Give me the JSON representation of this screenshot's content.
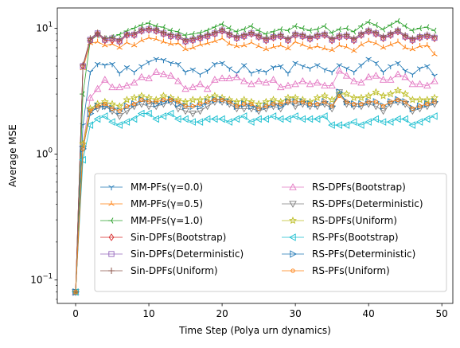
{
  "chart_data": {
    "type": "line",
    "xlabel": "Time Step (Polya urn dynamics)",
    "ylabel": "Average MSE",
    "xlim": [
      -2.5,
      51.5
    ],
    "ylim": [
      0.065,
      14.5
    ],
    "yscale": "log",
    "x_ticks": [
      0,
      10,
      20,
      30,
      40,
      50
    ],
    "y_ticks": [
      {
        "value": 0.1,
        "base": "10",
        "exp": "−1"
      },
      {
        "value": 1,
        "base": "10",
        "exp": "0"
      },
      {
        "value": 10,
        "base": "10",
        "exp": "1"
      }
    ],
    "grid": false,
    "legend": {
      "placement": "lower-right",
      "columns": 2
    },
    "series": [
      {
        "name": "MM-PFs(γ=0.0)",
        "color": "#1f77b4",
        "marker": "tri_down",
        "values": [
          0.08,
          1.7,
          4.5,
          5.2,
          5.1,
          5.2,
          4.4,
          4.9,
          4.5,
          5.0,
          5.4,
          5.7,
          5.6,
          5.3,
          5.2,
          4.5,
          4.7,
          4.3,
          4.6,
          5.2,
          5.3,
          4.8,
          4.4,
          5.1,
          4.4,
          4.6,
          4.5,
          4.9,
          5.0,
          4.4,
          5.3,
          5.0,
          4.8,
          5.1,
          4.7,
          4.5,
          5.1,
          4.8,
          4.5,
          5.1,
          5.7,
          5.3,
          4.5,
          5.0,
          5.3,
          4.6,
          4.3,
          4.8,
          5.0,
          4.2
        ]
      },
      {
        "name": "MM-PFs(γ=0.5)",
        "color": "#ff7f0e",
        "marker": "tri_up",
        "values": [
          0.08,
          4.8,
          7.6,
          7.8,
          7.3,
          7.5,
          7.0,
          7.7,
          7.3,
          8.0,
          8.4,
          8.2,
          7.8,
          7.5,
          7.6,
          6.8,
          7.0,
          7.4,
          7.6,
          7.9,
          8.3,
          7.5,
          7.2,
          7.3,
          7.7,
          7.2,
          6.8,
          7.1,
          7.3,
          6.9,
          7.8,
          7.4,
          7.0,
          7.2,
          6.9,
          6.7,
          7.3,
          7.1,
          6.6,
          7.4,
          7.9,
          7.6,
          7.0,
          7.4,
          7.8,
          7.0,
          6.8,
          7.2,
          7.3,
          6.2
        ]
      },
      {
        "name": "MM-PFs(γ=1.0)",
        "color": "#2ca02c",
        "marker": "tri_left",
        "values": [
          0.08,
          3.0,
          8.0,
          8.8,
          8.3,
          8.5,
          8.9,
          9.5,
          10.0,
          10.6,
          11.0,
          10.4,
          10.2,
          9.6,
          9.4,
          8.8,
          9.0,
          9.2,
          9.6,
          10.2,
          10.8,
          10.0,
          9.4,
          9.8,
          10.4,
          9.6,
          9.0,
          9.4,
          9.8,
          9.6,
          10.4,
          10.0,
          9.6,
          9.8,
          10.4,
          9.2,
          9.8,
          10.0,
          9.4,
          10.4,
          11.2,
          10.6,
          9.8,
          10.6,
          11.4,
          10.4,
          9.6,
          10.0,
          10.2,
          9.6
        ]
      },
      {
        "name": "Sin-DPFs(Bootstrap)",
        "color": "#d62728",
        "marker": "diamond",
        "values": [
          0.08,
          5.0,
          8.0,
          9.0,
          8.0,
          8.0,
          7.8,
          8.8,
          8.8,
          9.5,
          9.7,
          9.5,
          9.0,
          8.6,
          8.5,
          7.8,
          8.0,
          8.3,
          8.6,
          9.0,
          9.5,
          8.8,
          8.3,
          8.6,
          9.0,
          8.5,
          8.0,
          8.4,
          8.6,
          8.0,
          8.8,
          8.6,
          8.2,
          8.6,
          8.8,
          8.0,
          8.5,
          8.6,
          8.0,
          8.8,
          9.4,
          9.0,
          8.3,
          8.8,
          9.4,
          8.5,
          8.0,
          8.4,
          8.6,
          8.3
        ]
      },
      {
        "name": "Sin-DPFs(Deterministic)",
        "color": "#9467bd",
        "marker": "square",
        "values": [
          0.08,
          5.0,
          8.1,
          9.1,
          8.1,
          8.3,
          7.9,
          8.9,
          8.9,
          9.6,
          9.8,
          9.6,
          9.1,
          8.7,
          8.6,
          7.9,
          8.1,
          8.4,
          8.7,
          9.1,
          9.6,
          8.9,
          8.4,
          8.7,
          9.1,
          8.6,
          8.1,
          8.5,
          8.7,
          8.1,
          8.9,
          8.7,
          8.3,
          8.7,
          8.9,
          8.1,
          8.6,
          8.7,
          8.1,
          8.9,
          9.5,
          9.1,
          8.4,
          8.9,
          9.5,
          8.6,
          8.1,
          8.5,
          8.7,
          8.4
        ]
      },
      {
        "name": "Sin-DPFs(Uniform)",
        "color": "#8c564b",
        "marker": "plus",
        "values": [
          0.08,
          5.1,
          8.3,
          9.2,
          8.3,
          8.4,
          8.1,
          9.0,
          9.1,
          9.8,
          10.0,
          9.8,
          9.3,
          8.9,
          8.8,
          8.1,
          8.3,
          8.6,
          8.9,
          9.3,
          9.8,
          9.1,
          8.6,
          8.9,
          9.3,
          8.8,
          8.3,
          8.7,
          8.9,
          8.3,
          9.1,
          8.9,
          8.5,
          8.9,
          9.1,
          8.3,
          8.8,
          8.9,
          8.3,
          9.1,
          9.7,
          9.3,
          8.6,
          9.1,
          9.7,
          8.8,
          8.3,
          8.7,
          8.9,
          8.6
        ]
      },
      {
        "name": "RS-DPFs(Bootstrap)",
        "color": "#e377c2",
        "marker": "triangle_up",
        "values": [
          0.08,
          1.2,
          2.8,
          3.3,
          3.9,
          3.4,
          3.4,
          3.5,
          3.7,
          4.1,
          4.0,
          4.5,
          4.3,
          4.2,
          3.8,
          3.3,
          3.4,
          3.6,
          3.3,
          3.9,
          4.0,
          4.0,
          4.1,
          3.8,
          3.6,
          3.8,
          3.7,
          3.9,
          3.4,
          3.5,
          3.6,
          3.8,
          3.6,
          3.7,
          3.5,
          3.5,
          4.6,
          4.2,
          3.8,
          3.7,
          4.1,
          4.2,
          3.9,
          3.9,
          4.3,
          4.1,
          3.6,
          3.6,
          3.5,
          3.8
        ]
      },
      {
        "name": "RS-DPFs(Deterministic)",
        "color": "#7f7f7f",
        "marker": "triangle_down",
        "values": [
          0.08,
          1.1,
          2.2,
          2.3,
          2.4,
          2.2,
          2.0,
          2.2,
          2.4,
          2.5,
          2.4,
          2.4,
          2.5,
          2.6,
          2.3,
          2.2,
          2.1,
          2.2,
          2.4,
          2.6,
          2.6,
          2.5,
          2.3,
          2.3,
          2.3,
          2.2,
          2.3,
          2.4,
          2.3,
          2.6,
          2.4,
          2.5,
          2.4,
          2.4,
          2.5,
          2.3,
          3.1,
          2.5,
          2.4,
          2.4,
          2.5,
          2.4,
          2.2,
          2.5,
          2.6,
          2.5,
          2.2,
          2.3,
          2.4,
          2.5
        ]
      },
      {
        "name": "RS-DPFs(Uniform)",
        "color": "#bcbd22",
        "marker": "star",
        "values": [
          0.08,
          1.2,
          2.3,
          2.5,
          2.6,
          2.5,
          2.4,
          2.7,
          2.8,
          2.9,
          2.8,
          2.7,
          2.9,
          2.8,
          2.7,
          2.6,
          2.7,
          2.7,
          2.8,
          2.9,
          2.8,
          2.7,
          2.6,
          2.7,
          2.6,
          2.5,
          2.6,
          2.7,
          2.6,
          2.8,
          2.8,
          2.7,
          2.6,
          2.8,
          2.9,
          2.7,
          3.0,
          3.0,
          2.8,
          2.8,
          2.9,
          3.1,
          2.9,
          3.0,
          3.2,
          3.0,
          2.7,
          2.7,
          2.7,
          2.8
        ]
      },
      {
        "name": "RS-PFs(Bootstrap)",
        "color": "#17becf",
        "marker": "triangle_left",
        "values": [
          0.08,
          0.9,
          1.7,
          1.9,
          2.0,
          1.8,
          1.7,
          1.8,
          1.9,
          2.1,
          2.1,
          1.9,
          2.0,
          2.1,
          1.9,
          1.9,
          1.8,
          1.8,
          1.9,
          1.9,
          1.9,
          1.8,
          1.9,
          2.0,
          1.8,
          1.9,
          1.9,
          2.0,
          1.9,
          1.9,
          2.0,
          1.9,
          1.9,
          1.9,
          2.0,
          1.7,
          1.7,
          1.7,
          1.8,
          1.7,
          1.8,
          1.9,
          1.8,
          1.8,
          1.9,
          1.9,
          1.7,
          1.8,
          1.9,
          2.0
        ]
      },
      {
        "name": "RS-PFs(Deterministic)",
        "color": "#1f77b4",
        "marker": "triangle_right",
        "values": [
          0.08,
          1.1,
          2.1,
          2.4,
          2.4,
          2.3,
          2.2,
          2.4,
          2.5,
          2.7,
          2.6,
          2.5,
          2.6,
          2.7,
          2.5,
          2.4,
          2.4,
          2.4,
          2.6,
          2.7,
          2.7,
          2.6,
          2.4,
          2.5,
          2.4,
          2.3,
          2.4,
          2.5,
          2.4,
          2.6,
          2.6,
          2.6,
          2.5,
          2.5,
          2.6,
          2.4,
          3.1,
          2.6,
          2.5,
          2.5,
          2.6,
          2.6,
          2.4,
          2.6,
          2.7,
          2.6,
          2.3,
          2.4,
          2.5,
          2.6
        ]
      },
      {
        "name": "RS-PFs(Uniform)",
        "color": "#ff7f0e",
        "marker": "circle",
        "values": [
          0.08,
          1.1,
          2.2,
          2.4,
          2.5,
          2.3,
          2.2,
          2.4,
          2.5,
          2.7,
          2.6,
          2.6,
          2.7,
          2.7,
          2.6,
          2.4,
          2.4,
          2.5,
          2.6,
          2.7,
          2.7,
          2.6,
          2.4,
          2.5,
          2.5,
          2.3,
          2.4,
          2.5,
          2.5,
          2.6,
          2.6,
          2.6,
          2.5,
          2.5,
          2.6,
          2.4,
          2.9,
          2.6,
          2.5,
          2.5,
          2.6,
          2.6,
          2.4,
          2.6,
          2.7,
          2.6,
          2.3,
          2.4,
          2.5,
          2.6
        ]
      }
    ]
  }
}
